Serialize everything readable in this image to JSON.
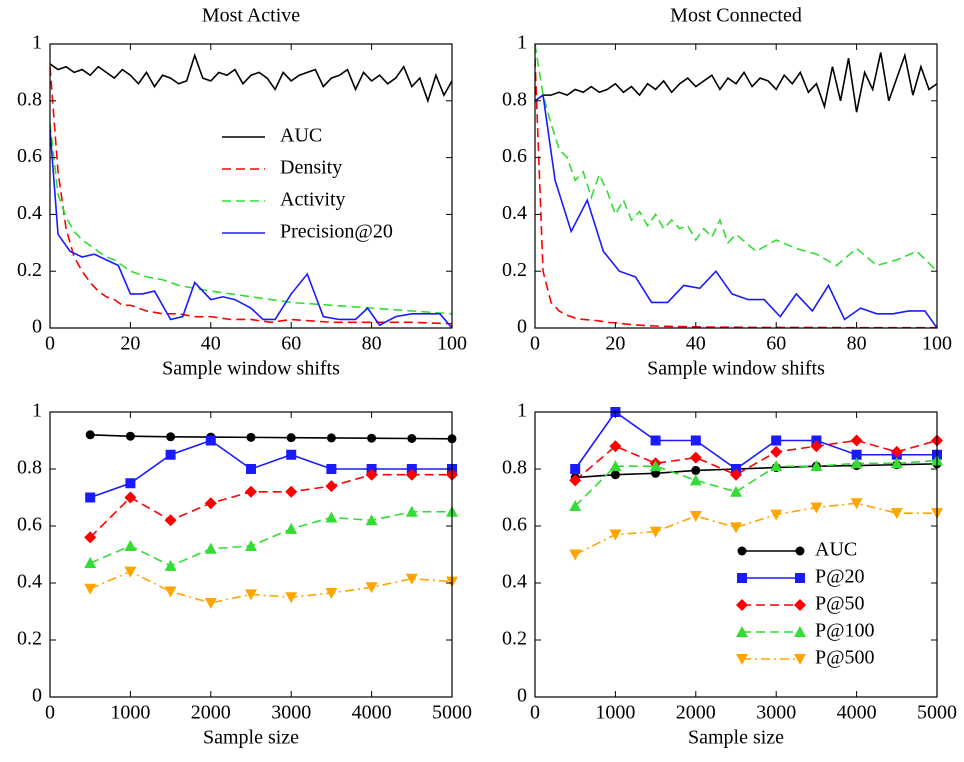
{
  "chart_data": [
    {
      "type": "line",
      "title": "Most Active",
      "xlabel": "Sample window shifts",
      "xlim": [
        0,
        100
      ],
      "xticks": [
        0,
        20,
        40,
        60,
        80,
        100
      ],
      "ylim": [
        0,
        1
      ],
      "yticks": [
        0,
        0.2,
        0.4,
        0.6,
        0.8,
        1
      ],
      "legend": "center right",
      "series": [
        {
          "name": "AUC",
          "color": "#000000",
          "style": "solid",
          "x": [
            0,
            2,
            4,
            6,
            8,
            10,
            12,
            14,
            16,
            18,
            20,
            22,
            24,
            26,
            28,
            30,
            32,
            34,
            36,
            38,
            40,
            42,
            44,
            46,
            48,
            50,
            52,
            54,
            56,
            58,
            60,
            62,
            64,
            66,
            68,
            70,
            72,
            74,
            76,
            78,
            80,
            82,
            84,
            86,
            88,
            90,
            92,
            94,
            96,
            98,
            100
          ],
          "values": [
            0.93,
            0.91,
            0.92,
            0.9,
            0.91,
            0.89,
            0.92,
            0.9,
            0.88,
            0.91,
            0.89,
            0.86,
            0.9,
            0.85,
            0.89,
            0.88,
            0.86,
            0.87,
            0.96,
            0.88,
            0.87,
            0.9,
            0.89,
            0.91,
            0.86,
            0.89,
            0.9,
            0.88,
            0.84,
            0.9,
            0.87,
            0.89,
            0.9,
            0.91,
            0.85,
            0.88,
            0.89,
            0.91,
            0.84,
            0.9,
            0.87,
            0.89,
            0.86,
            0.88,
            0.92,
            0.85,
            0.88,
            0.8,
            0.89,
            0.82,
            0.87
          ]
        },
        {
          "name": "Density",
          "color": "#ff0000",
          "style": "dashed",
          "x": [
            0,
            2,
            4,
            6,
            8,
            10,
            12,
            14,
            16,
            18,
            20,
            24,
            28,
            32,
            36,
            40,
            45,
            50,
            55,
            60,
            70,
            80,
            90,
            100
          ],
          "values": [
            0.92,
            0.55,
            0.35,
            0.25,
            0.2,
            0.16,
            0.13,
            0.11,
            0.1,
            0.08,
            0.08,
            0.06,
            0.05,
            0.05,
            0.04,
            0.04,
            0.03,
            0.03,
            0.02,
            0.03,
            0.02,
            0.02,
            0.02,
            0.015
          ]
        },
        {
          "name": "Activity",
          "color": "#33dd33",
          "style": "dashed",
          "x": [
            0,
            2,
            4,
            6,
            8,
            10,
            12,
            14,
            16,
            18,
            20,
            24,
            28,
            32,
            36,
            40,
            45,
            50,
            55,
            60,
            70,
            80,
            90,
            100
          ],
          "values": [
            0.72,
            0.47,
            0.39,
            0.34,
            0.31,
            0.29,
            0.27,
            0.25,
            0.24,
            0.22,
            0.2,
            0.18,
            0.17,
            0.15,
            0.14,
            0.13,
            0.12,
            0.11,
            0.1,
            0.09,
            0.08,
            0.07,
            0.06,
            0.05
          ]
        },
        {
          "name": "Precision@20",
          "color": "#1a1aff",
          "style": "solid",
          "x": [
            0,
            2,
            5,
            8,
            11,
            14,
            17,
            20,
            23,
            26,
            30,
            33,
            36,
            40,
            43,
            46,
            50,
            53,
            56,
            60,
            64,
            68,
            72,
            76,
            79,
            82,
            86,
            90,
            94,
            97,
            100
          ],
          "values": [
            0.7,
            0.33,
            0.27,
            0.25,
            0.26,
            0.24,
            0.22,
            0.12,
            0.12,
            0.13,
            0.03,
            0.04,
            0.16,
            0.1,
            0.11,
            0.1,
            0.07,
            0.03,
            0.03,
            0.12,
            0.19,
            0.04,
            0.03,
            0.03,
            0.07,
            0.01,
            0.04,
            0.05,
            0.05,
            0.05,
            0.0
          ]
        }
      ]
    },
    {
      "type": "line",
      "title": "Most Connected",
      "xlabel": "Sample window shifts",
      "xlim": [
        0,
        100
      ],
      "xticks": [
        0,
        20,
        40,
        60,
        80,
        100
      ],
      "ylim": [
        0,
        1
      ],
      "yticks": [
        0,
        0.2,
        0.4,
        0.6,
        0.8,
        1
      ],
      "series": [
        {
          "color": "#000000",
          "style": "solid",
          "x": [
            0,
            2,
            4,
            6,
            8,
            10,
            12,
            14,
            16,
            18,
            20,
            22,
            24,
            26,
            28,
            30,
            32,
            34,
            36,
            38,
            40,
            42,
            44,
            46,
            48,
            50,
            52,
            54,
            56,
            58,
            60,
            62,
            64,
            66,
            68,
            70,
            72,
            74,
            76,
            78,
            80,
            82,
            84,
            86,
            88,
            90,
            92,
            94,
            96,
            98,
            100
          ],
          "values": [
            0.8,
            0.82,
            0.82,
            0.83,
            0.82,
            0.84,
            0.83,
            0.85,
            0.83,
            0.84,
            0.86,
            0.83,
            0.85,
            0.82,
            0.86,
            0.84,
            0.87,
            0.83,
            0.86,
            0.88,
            0.85,
            0.87,
            0.89,
            0.84,
            0.88,
            0.86,
            0.9,
            0.85,
            0.88,
            0.87,
            0.84,
            0.89,
            0.86,
            0.9,
            0.83,
            0.86,
            0.78,
            0.92,
            0.8,
            0.95,
            0.76,
            0.9,
            0.84,
            0.97,
            0.8,
            0.88,
            0.96,
            0.82,
            0.92,
            0.84,
            0.86
          ]
        },
        {
          "color": "#ff0000",
          "style": "dashed",
          "x": [
            0,
            2,
            4,
            6,
            8,
            10,
            12,
            14,
            16,
            18,
            20,
            24,
            28,
            32,
            36,
            40,
            45,
            50,
            55,
            60,
            70,
            80,
            90,
            100
          ],
          "values": [
            0.95,
            0.2,
            0.09,
            0.06,
            0.045,
            0.035,
            0.03,
            0.028,
            0.025,
            0.02,
            0.018,
            0.012,
            0.008,
            0.006,
            0.005,
            0.004,
            0.003,
            0.003,
            0.002,
            0.002,
            0.002,
            0.001,
            0.001,
            0.001
          ]
        },
        {
          "color": "#33dd33",
          "style": "dashed",
          "x": [
            0,
            2,
            4,
            6,
            8,
            10,
            12,
            14,
            16,
            18,
            20,
            22,
            24,
            26,
            28,
            30,
            32,
            34,
            36,
            38,
            40,
            42,
            44,
            46,
            48,
            50,
            55,
            60,
            65,
            70,
            75,
            80,
            85,
            90,
            95,
            100
          ],
          "values": [
            1.0,
            0.82,
            0.72,
            0.63,
            0.6,
            0.52,
            0.55,
            0.46,
            0.54,
            0.48,
            0.4,
            0.45,
            0.38,
            0.41,
            0.36,
            0.4,
            0.35,
            0.38,
            0.35,
            0.36,
            0.31,
            0.35,
            0.32,
            0.38,
            0.3,
            0.33,
            0.27,
            0.31,
            0.28,
            0.26,
            0.22,
            0.28,
            0.22,
            0.24,
            0.27,
            0.2
          ]
        },
        {
          "color": "#1a1aff",
          "style": "solid",
          "x": [
            0,
            2,
            5,
            9,
            13,
            17,
            21,
            25,
            29,
            33,
            37,
            41,
            45,
            49,
            53,
            57,
            61,
            65,
            69,
            73,
            77,
            81,
            85,
            89,
            93,
            97,
            100
          ],
          "values": [
            0.8,
            0.82,
            0.52,
            0.34,
            0.45,
            0.27,
            0.2,
            0.18,
            0.09,
            0.09,
            0.15,
            0.14,
            0.2,
            0.12,
            0.1,
            0.1,
            0.04,
            0.12,
            0.06,
            0.15,
            0.03,
            0.07,
            0.05,
            0.05,
            0.06,
            0.06,
            0.0
          ]
        }
      ]
    },
    {
      "type": "line",
      "xlabel": "Sample size",
      "xlim": [
        0,
        5000
      ],
      "xticks": [
        0,
        1000,
        2000,
        3000,
        4000,
        5000
      ],
      "ylim": [
        0,
        1
      ],
      "yticks": [
        0,
        0.2,
        0.4,
        0.6,
        0.8,
        1
      ],
      "series": [
        {
          "color": "#000000",
          "style": "solid",
          "marker": "circle",
          "x": [
            500,
            1000,
            1500,
            2000,
            2500,
            3000,
            3500,
            4000,
            4500,
            5000
          ],
          "values": [
            0.92,
            0.915,
            0.913,
            0.912,
            0.911,
            0.91,
            0.909,
            0.908,
            0.907,
            0.906
          ]
        },
        {
          "color": "#1a1aff",
          "style": "solid",
          "marker": "square",
          "x": [
            500,
            1000,
            1500,
            2000,
            2500,
            3000,
            3500,
            4000,
            4500,
            5000
          ],
          "values": [
            0.7,
            0.75,
            0.85,
            0.9,
            0.8,
            0.85,
            0.8,
            0.8,
            0.8,
            0.8
          ]
        },
        {
          "color": "#ff0000",
          "style": "dashed",
          "marker": "diamond",
          "x": [
            500,
            1000,
            1500,
            2000,
            2500,
            3000,
            3500,
            4000,
            4500,
            5000
          ],
          "values": [
            0.56,
            0.7,
            0.62,
            0.68,
            0.72,
            0.72,
            0.74,
            0.78,
            0.78,
            0.78
          ]
        },
        {
          "color": "#33dd33",
          "style": "dashed",
          "marker": "triangle-up",
          "x": [
            500,
            1000,
            1500,
            2000,
            2500,
            3000,
            3500,
            4000,
            4500,
            5000
          ],
          "values": [
            0.47,
            0.53,
            0.46,
            0.52,
            0.53,
            0.59,
            0.63,
            0.62,
            0.65,
            0.65
          ]
        },
        {
          "color": "#ffa500",
          "style": "dashdot",
          "marker": "triangle-down",
          "x": [
            500,
            1000,
            1500,
            2000,
            2500,
            3000,
            3500,
            4000,
            4500,
            5000
          ],
          "values": [
            0.38,
            0.44,
            0.37,
            0.33,
            0.36,
            0.35,
            0.365,
            0.385,
            0.415,
            0.405
          ]
        }
      ]
    },
    {
      "type": "line",
      "xlabel": "Sample size",
      "xlim": [
        0,
        5000
      ],
      "xticks": [
        0,
        1000,
        2000,
        3000,
        4000,
        5000
      ],
      "ylim": [
        0,
        1
      ],
      "yticks": [
        0,
        0.2,
        0.4,
        0.6,
        0.8,
        1
      ],
      "legend": "lower right",
      "series": [
        {
          "name": "AUC",
          "color": "#000000",
          "style": "solid",
          "marker": "circle",
          "x": [
            500,
            1000,
            1500,
            2000,
            2500,
            3000,
            3500,
            4000,
            4500,
            5000
          ],
          "values": [
            0.77,
            0.78,
            0.785,
            0.795,
            0.8,
            0.805,
            0.81,
            0.812,
            0.815,
            0.818
          ]
        },
        {
          "name": "P@20",
          "color": "#1a1aff",
          "style": "solid",
          "marker": "square",
          "x": [
            500,
            1000,
            1500,
            2000,
            2500,
            3000,
            3500,
            4000,
            4500,
            5000
          ],
          "values": [
            0.8,
            1.0,
            0.9,
            0.9,
            0.8,
            0.9,
            0.9,
            0.85,
            0.85,
            0.85
          ]
        },
        {
          "name": "P@50",
          "color": "#ff0000",
          "style": "dashed",
          "marker": "diamond",
          "x": [
            500,
            1000,
            1500,
            2000,
            2500,
            3000,
            3500,
            4000,
            4500,
            5000
          ],
          "values": [
            0.76,
            0.88,
            0.82,
            0.84,
            0.78,
            0.86,
            0.88,
            0.9,
            0.86,
            0.9
          ]
        },
        {
          "name": "P@100",
          "color": "#33dd33",
          "style": "dashed",
          "marker": "triangle-up",
          "x": [
            500,
            1000,
            1500,
            2000,
            2500,
            3000,
            3500,
            4000,
            4500,
            5000
          ],
          "values": [
            0.67,
            0.81,
            0.81,
            0.76,
            0.72,
            0.81,
            0.81,
            0.82,
            0.82,
            0.83
          ]
        },
        {
          "name": "P@500",
          "color": "#ffa500",
          "style": "dashdot",
          "marker": "triangle-down",
          "x": [
            500,
            1000,
            1500,
            2000,
            2500,
            3000,
            3500,
            4000,
            4500,
            5000
          ],
          "values": [
            0.5,
            0.57,
            0.58,
            0.635,
            0.595,
            0.64,
            0.665,
            0.68,
            0.645,
            0.645
          ]
        }
      ]
    }
  ]
}
